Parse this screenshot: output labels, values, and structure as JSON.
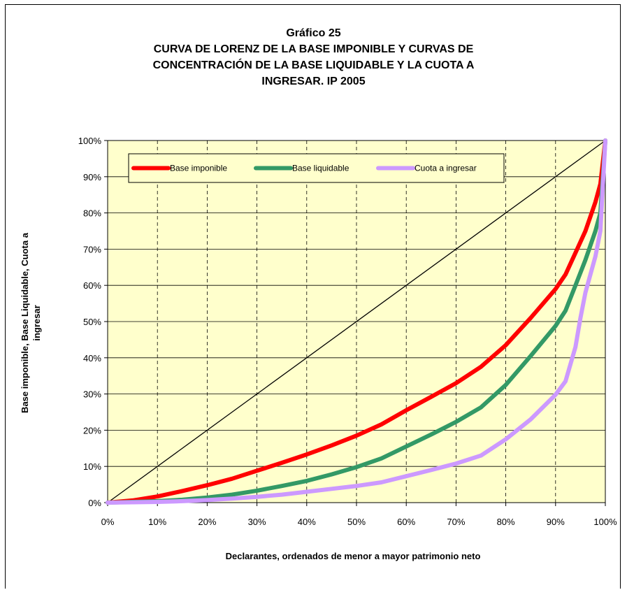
{
  "chart_data": {
    "type": "line",
    "title_lines": [
      "Gráfico 25",
      "CURVA DE LORENZ DE LA BASE IMPONIBLE Y CURVAS DE",
      "CONCENTRACIÓN DE LA BASE LIQUIDABLE Y LA CUOTA A",
      "INGRESAR. IP 2005"
    ],
    "xlabel": "Declarantes, ordenados de menor a mayor patrimonio neto",
    "ylabel_lines": [
      "Base imponible, Base Liquidable, Cuota a",
      "ingresar"
    ],
    "xlim": [
      0,
      100
    ],
    "ylim": [
      0,
      100
    ],
    "x_ticks": [
      "0%",
      "10%",
      "20%",
      "30%",
      "40%",
      "50%",
      "60%",
      "70%",
      "80%",
      "90%",
      "100%"
    ],
    "y_ticks": [
      "0%",
      "10%",
      "20%",
      "30%",
      "40%",
      "50%",
      "60%",
      "70%",
      "80%",
      "90%",
      "100%"
    ],
    "plot_background": "#ffffcc",
    "grid": {
      "horizontal": "solid",
      "vertical": "dashed"
    },
    "legend_position": "top",
    "equality_line": {
      "x": [
        0,
        100
      ],
      "y": [
        0,
        100
      ],
      "color": "#000000"
    },
    "series": [
      {
        "name": "Base imponible",
        "color": "#ff0000",
        "x": [
          0,
          5,
          10,
          15,
          20,
          25,
          30,
          35,
          40,
          45,
          50,
          55,
          60,
          65,
          70,
          75,
          80,
          85,
          90,
          92,
          94,
          96,
          98,
          99,
          100
        ],
        "y": [
          0,
          0.6,
          1.7,
          3.2,
          4.8,
          6.6,
          8.8,
          11,
          13.3,
          15.8,
          18.5,
          21.6,
          25.5,
          29.2,
          33,
          37.5,
          43.5,
          51,
          59,
          63,
          69,
          75,
          83,
          88,
          100
        ]
      },
      {
        "name": "Base liquidable",
        "color": "#339966",
        "x": [
          0,
          5,
          10,
          15,
          20,
          25,
          30,
          35,
          40,
          45,
          50,
          55,
          60,
          65,
          70,
          75,
          80,
          85,
          90,
          92,
          94,
          96,
          98,
          99,
          100
        ],
        "y": [
          0,
          0.2,
          0.4,
          0.8,
          1.4,
          2.2,
          3.3,
          4.6,
          6,
          7.8,
          9.8,
          12.2,
          15.5,
          18.8,
          22.3,
          26.3,
          32.5,
          40.5,
          48.8,
          53,
          60,
          67,
          75,
          80,
          100
        ]
      },
      {
        "name": "Cuota a ingresar",
        "color": "#cc99ff",
        "x": [
          0,
          5,
          10,
          15,
          20,
          25,
          30,
          35,
          40,
          45,
          50,
          55,
          60,
          65,
          70,
          75,
          80,
          85,
          90,
          92,
          94,
          95,
          96,
          98,
          99,
          100
        ],
        "y": [
          0,
          0.1,
          0.2,
          0.4,
          0.7,
          1.1,
          1.6,
          2.2,
          3,
          3.8,
          4.6,
          5.6,
          7.3,
          9,
          10.8,
          13,
          17.5,
          23,
          29.8,
          33.5,
          43,
          51,
          58,
          68,
          75,
          100
        ]
      }
    ]
  }
}
